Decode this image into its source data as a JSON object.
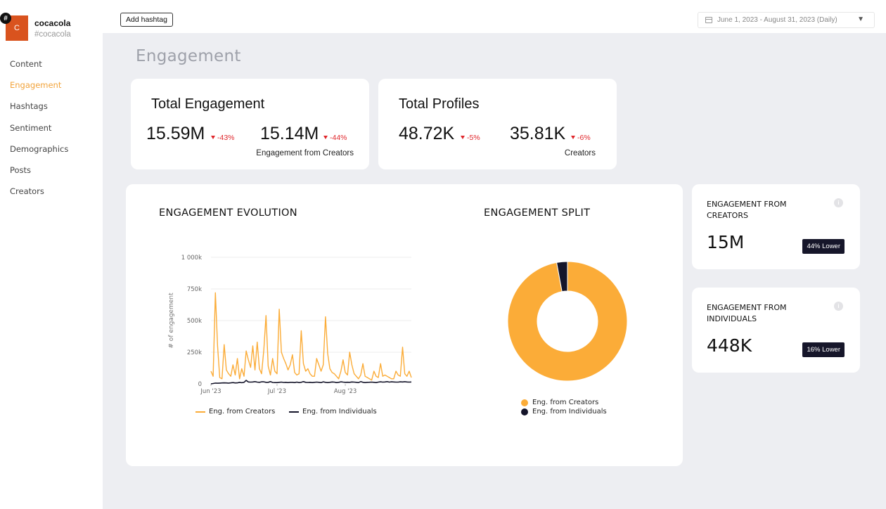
{
  "brand": {
    "name": "cocacola",
    "handle": "#cocacola",
    "avatar_letter": "C",
    "badge": "#"
  },
  "nav": {
    "items": [
      {
        "label": "Content"
      },
      {
        "label": "Engagement",
        "active": true
      },
      {
        "label": "Hashtags"
      },
      {
        "label": "Sentiment"
      },
      {
        "label": "Demographics"
      },
      {
        "label": "Posts"
      },
      {
        "label": "Creators"
      }
    ]
  },
  "topbar": {
    "add_hashtag_label": "Add hashtag",
    "date_range": "June 1, 2023 - August 31, 2023 (Daily)"
  },
  "page": {
    "title": "Engagement"
  },
  "kpis": {
    "total_engagement": {
      "title": "Total Engagement",
      "value": "15.59M",
      "change": "-43%",
      "creators_value": "15.14M",
      "creators_change": "-44%",
      "creators_label": "Engagement from Creators"
    },
    "total_profiles": {
      "title": "Total Profiles",
      "value": "48.72K",
      "change": "-5%",
      "creators_value": "35.81K",
      "creators_change": "-6%",
      "creators_label": "Creators"
    }
  },
  "side_cards": {
    "creators": {
      "title": "ENGAGEMENT FROM CREATORS",
      "value": "15M",
      "badge": "44% Lower"
    },
    "individuals": {
      "title": "ENGAGEMENT FROM INDIVIDUALS",
      "value": "448K",
      "badge": "16% Lower"
    }
  },
  "colors": {
    "accent": "#f2a33a",
    "creators": "#fbac38",
    "individuals": "#15152a",
    "negative": "#e0262b"
  },
  "icons": {
    "calendar": "calendar-icon",
    "caret": "chevron-down-icon",
    "info": "info-icon"
  },
  "chart_data": [
    {
      "type": "line",
      "title": "ENGAGEMENT EVOLUTION",
      "ylabel": "# of engagement",
      "ylim": [
        0,
        1000000
      ],
      "y_ticks": [
        {
          "value": 0,
          "label": "0"
        },
        {
          "value": 250000,
          "label": "250k"
        },
        {
          "value": 500000,
          "label": "500k"
        },
        {
          "value": 750000,
          "label": "750k"
        },
        {
          "value": 1000000,
          "label": "1 000k"
        }
      ],
      "x_ticks": [
        {
          "date": "2023-06-01",
          "label": "Jun '23"
        },
        {
          "date": "2023-07-01",
          "label": "Jul '23"
        },
        {
          "date": "2023-08-01",
          "label": "Aug '23"
        }
      ],
      "x": [
        "2023-06-01",
        "2023-06-02",
        "2023-06-03",
        "2023-06-04",
        "2023-06-05",
        "2023-06-06",
        "2023-06-07",
        "2023-06-08",
        "2023-06-09",
        "2023-06-10",
        "2023-06-11",
        "2023-06-12",
        "2023-06-13",
        "2023-06-14",
        "2023-06-15",
        "2023-06-16",
        "2023-06-17",
        "2023-06-18",
        "2023-06-19",
        "2023-06-20",
        "2023-06-21",
        "2023-06-22",
        "2023-06-23",
        "2023-06-24",
        "2023-06-25",
        "2023-06-26",
        "2023-06-27",
        "2023-06-28",
        "2023-06-29",
        "2023-06-30",
        "2023-07-01",
        "2023-07-02",
        "2023-07-03",
        "2023-07-04",
        "2023-07-05",
        "2023-07-06",
        "2023-07-07",
        "2023-07-08",
        "2023-07-09",
        "2023-07-10",
        "2023-07-11",
        "2023-07-12",
        "2023-07-13",
        "2023-07-14",
        "2023-07-15",
        "2023-07-16",
        "2023-07-17",
        "2023-07-18",
        "2023-07-19",
        "2023-07-20",
        "2023-07-21",
        "2023-07-22",
        "2023-07-23",
        "2023-07-24",
        "2023-07-25",
        "2023-07-26",
        "2023-07-27",
        "2023-07-28",
        "2023-07-29",
        "2023-07-30",
        "2023-07-31",
        "2023-08-01",
        "2023-08-02",
        "2023-08-03",
        "2023-08-04",
        "2023-08-05",
        "2023-08-06",
        "2023-08-07",
        "2023-08-08",
        "2023-08-09",
        "2023-08-10",
        "2023-08-11",
        "2023-08-12",
        "2023-08-13",
        "2023-08-14",
        "2023-08-15",
        "2023-08-16",
        "2023-08-17",
        "2023-08-18",
        "2023-08-19",
        "2023-08-20",
        "2023-08-21",
        "2023-08-22",
        "2023-08-23",
        "2023-08-24",
        "2023-08-25",
        "2023-08-26",
        "2023-08-27",
        "2023-08-28",
        "2023-08-29",
        "2023-08-30",
        "2023-08-31"
      ],
      "series": [
        {
          "name": "Eng. from Creators",
          "values": [
            100000,
            60000,
            720000,
            300000,
            50000,
            40000,
            310000,
            110000,
            80000,
            60000,
            150000,
            70000,
            200000,
            40000,
            120000,
            60000,
            260000,
            190000,
            130000,
            300000,
            110000,
            330000,
            120000,
            80000,
            270000,
            540000,
            140000,
            70000,
            200000,
            100000,
            80000,
            590000,
            250000,
            200000,
            160000,
            110000,
            150000,
            230000,
            90000,
            70000,
            80000,
            420000,
            160000,
            100000,
            120000,
            80000,
            60000,
            60000,
            200000,
            150000,
            100000,
            150000,
            530000,
            240000,
            120000,
            90000,
            80000,
            60000,
            40000,
            100000,
            190000,
            90000,
            70000,
            250000,
            150000,
            80000,
            60000,
            40000,
            70000,
            160000,
            60000,
            50000,
            40000,
            30000,
            100000,
            60000,
            50000,
            160000,
            60000,
            70000,
            60000,
            50000,
            40000,
            40000,
            100000,
            70000,
            60000,
            290000,
            80000,
            60000,
            100000,
            50000
          ]
        },
        {
          "name": "Eng. from Individuals",
          "values": [
            0,
            3000,
            6000,
            5000,
            6000,
            7000,
            8000,
            7000,
            6000,
            8000,
            10000,
            7000,
            8000,
            12000,
            9000,
            12000,
            28000,
            15000,
            14000,
            15000,
            18000,
            14000,
            12000,
            16000,
            16000,
            12000,
            12000,
            18000,
            11000,
            10000,
            10000,
            12000,
            14000,
            11000,
            12000,
            10000,
            12000,
            12000,
            10000,
            14000,
            10000,
            12000,
            18000,
            12000,
            11000,
            12000,
            10000,
            12000,
            14000,
            12000,
            10000,
            16000,
            12000,
            10000,
            12000,
            15000,
            14000,
            10000,
            12000,
            16000,
            14000,
            12000,
            13000,
            12000,
            15000,
            14000,
            12000,
            10000,
            18000,
            12000,
            10000,
            12000,
            13000,
            14000,
            12000,
            10000,
            14000,
            16000,
            14000,
            15000,
            18000,
            14000,
            16000,
            15000,
            14000,
            14000,
            16000,
            15000,
            17000,
            15000,
            14000,
            15000
          ]
        }
      ]
    },
    {
      "type": "pie",
      "title": "ENGAGEMENT SPLIT",
      "categories": [
        "Eng. from Creators",
        "Eng. from Individuals"
      ],
      "values": [
        15000000,
        448000
      ]
    }
  ]
}
